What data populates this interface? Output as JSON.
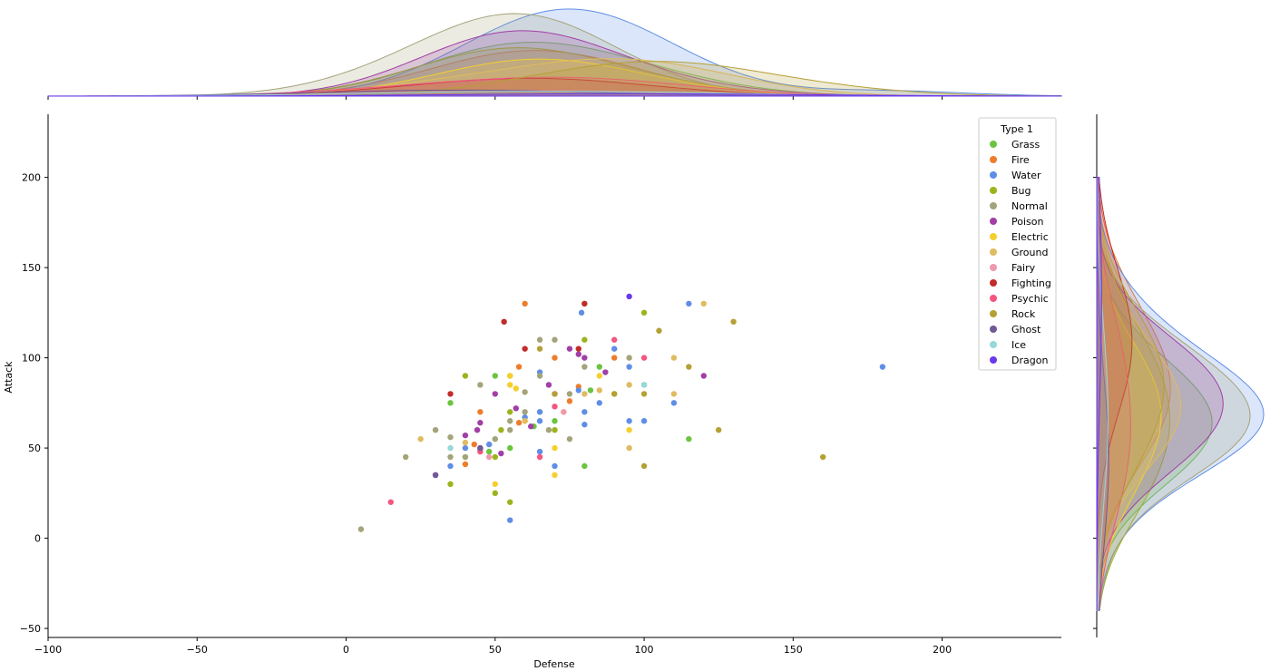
{
  "chart_data": {
    "type": "scatter",
    "subtype": "jointplot",
    "xlabel": "Defense",
    "ylabel": "Attack",
    "xlim": [
      -100,
      240
    ],
    "ylim": [
      -55,
      235
    ],
    "xticks": [
      -100,
      -50,
      0,
      50,
      100,
      150,
      200
    ],
    "xtick_labels": [
      "−100",
      "−50",
      "0",
      "50",
      "100",
      "150",
      "200"
    ],
    "yticks": [
      -50,
      0,
      50,
      100,
      150,
      200
    ],
    "ytick_labels": [
      "−50",
      "0",
      "50",
      "100",
      "150",
      "200"
    ],
    "legend": {
      "title": "Type 1",
      "placement": "top-right",
      "entries": [
        "Grass",
        "Fire",
        "Water",
        "Bug",
        "Normal",
        "Poison",
        "Electric",
        "Ground",
        "Fairy",
        "Fighting",
        "Psychic",
        "Rock",
        "Ghost",
        "Ice",
        "Dragon"
      ]
    },
    "marginal": "kde",
    "series": [
      {
        "name": "Grass",
        "color": "#6bc43f",
        "points": [
          [
            35,
            75
          ],
          [
            40,
            45
          ],
          [
            45,
            49
          ],
          [
            48,
            48
          ],
          [
            50,
            90
          ],
          [
            55,
            50
          ],
          [
            63,
            62
          ],
          [
            65,
            70
          ],
          [
            70,
            65
          ],
          [
            80,
            40
          ],
          [
            82,
            82
          ],
          [
            85,
            95
          ],
          [
            100,
            85
          ],
          [
            115,
            55
          ]
        ]
      },
      {
        "name": "Fire",
        "color": "#ee7d2b",
        "points": [
          [
            40,
            41
          ],
          [
            43,
            52
          ],
          [
            45,
            70
          ],
          [
            58,
            64
          ],
          [
            58,
            95
          ],
          [
            60,
            130
          ],
          [
            70,
            100
          ],
          [
            75,
            76
          ],
          [
            78,
            84
          ],
          [
            80,
            130
          ],
          [
            90,
            100
          ]
        ]
      },
      {
        "name": "Water",
        "color": "#5f8ee6",
        "points": [
          [
            35,
            40
          ],
          [
            40,
            50
          ],
          [
            48,
            52
          ],
          [
            55,
            10
          ],
          [
            60,
            67
          ],
          [
            65,
            48
          ],
          [
            65,
            92
          ],
          [
            65,
            65
          ],
          [
            65,
            70
          ],
          [
            70,
            40
          ],
          [
            78,
            82
          ],
          [
            79,
            125
          ],
          [
            80,
            63
          ],
          [
            80,
            70
          ],
          [
            85,
            75
          ],
          [
            90,
            105
          ],
          [
            95,
            65
          ],
          [
            95,
            95
          ],
          [
            100,
            65
          ],
          [
            110,
            75
          ],
          [
            115,
            130
          ],
          [
            180,
            95
          ]
        ]
      },
      {
        "name": "Bug",
        "color": "#9db31c",
        "points": [
          [
            35,
            30
          ],
          [
            40,
            90
          ],
          [
            50,
            25
          ],
          [
            50,
            45
          ],
          [
            52,
            60
          ],
          [
            55,
            20
          ],
          [
            55,
            70
          ],
          [
            55,
            90
          ],
          [
            70,
            60
          ],
          [
            80,
            110
          ],
          [
            90,
            80
          ],
          [
            100,
            125
          ]
        ]
      },
      {
        "name": "Normal",
        "color": "#a4a37a",
        "points": [
          [
            5,
            5
          ],
          [
            20,
            45
          ],
          [
            30,
            60
          ],
          [
            35,
            45
          ],
          [
            35,
            56
          ],
          [
            40,
            45
          ],
          [
            45,
            85
          ],
          [
            50,
            55
          ],
          [
            55,
            60
          ],
          [
            55,
            65
          ],
          [
            60,
            70
          ],
          [
            60,
            81
          ],
          [
            65,
            90
          ],
          [
            65,
            110
          ],
          [
            68,
            60
          ],
          [
            70,
            110
          ],
          [
            75,
            55
          ],
          [
            75,
            80
          ],
          [
            80,
            95
          ],
          [
            95,
            100
          ]
        ]
      },
      {
        "name": "Poison",
        "color": "#a13fa6",
        "points": [
          [
            30,
            35
          ],
          [
            40,
            57
          ],
          [
            44,
            60
          ],
          [
            45,
            50
          ],
          [
            45,
            64
          ],
          [
            50,
            80
          ],
          [
            52,
            47
          ],
          [
            57,
            72
          ],
          [
            62,
            62
          ],
          [
            68,
            85
          ],
          [
            70,
            80
          ],
          [
            75,
            105
          ],
          [
            78,
            102
          ],
          [
            80,
            100
          ],
          [
            87,
            92
          ],
          [
            120,
            90
          ]
        ]
      },
      {
        "name": "Electric",
        "color": "#f5cf2e",
        "points": [
          [
            50,
            30
          ],
          [
            55,
            85
          ],
          [
            55,
            90
          ],
          [
            57,
            83
          ],
          [
            60,
            65
          ],
          [
            70,
            35
          ],
          [
            70,
            50
          ],
          [
            85,
            90
          ],
          [
            95,
            60
          ]
        ]
      },
      {
        "name": "Ground",
        "color": "#dfbb61",
        "points": [
          [
            25,
            55
          ],
          [
            40,
            53
          ],
          [
            60,
            65
          ],
          [
            73,
            70
          ],
          [
            80,
            80
          ],
          [
            85,
            82
          ],
          [
            95,
            50
          ],
          [
            95,
            85
          ],
          [
            110,
            80
          ],
          [
            110,
            100
          ],
          [
            120,
            130
          ]
        ]
      },
      {
        "name": "Fairy",
        "color": "#ee99ac",
        "points": [
          [
            48,
            45
          ],
          [
            73,
            70
          ]
        ]
      },
      {
        "name": "Fighting",
        "color": "#c12c2b",
        "points": [
          [
            35,
            80
          ],
          [
            53,
            120
          ],
          [
            60,
            105
          ],
          [
            80,
            130
          ],
          [
            78,
            105
          ]
        ]
      },
      {
        "name": "Psychic",
        "color": "#f3567f",
        "points": [
          [
            15,
            20
          ],
          [
            45,
            48
          ],
          [
            65,
            45
          ],
          [
            70,
            73
          ],
          [
            90,
            110
          ],
          [
            100,
            100
          ]
        ]
      },
      {
        "name": "Rock",
        "color": "#b5a035",
        "points": [
          [
            65,
            105
          ],
          [
            70,
            80
          ],
          [
            90,
            80
          ],
          [
            100,
            40
          ],
          [
            100,
            80
          ],
          [
            105,
            115
          ],
          [
            115,
            95
          ],
          [
            125,
            60
          ],
          [
            130,
            120
          ],
          [
            160,
            45
          ]
        ]
      },
      {
        "name": "Ghost",
        "color": "#705996",
        "points": [
          [
            30,
            35
          ],
          [
            45,
            50
          ]
        ]
      },
      {
        "name": "Ice",
        "color": "#97d8d8",
        "points": [
          [
            35,
            50
          ],
          [
            100,
            85
          ]
        ]
      },
      {
        "name": "Dragon",
        "color": "#6b38f0",
        "points": [
          [
            95,
            134
          ]
        ]
      }
    ],
    "kde_curves": {
      "x_density_peaks": [
        {
          "name": "Water",
          "mean": 70,
          "sd": 24,
          "amp": 1.0
        },
        {
          "name": "Normal",
          "mean": 55,
          "sd": 24,
          "amp": 0.85
        },
        {
          "name": "Rock",
          "mean": 100,
          "sd": 35,
          "amp": 0.28
        },
        {
          "name": "Fire",
          "mean": 60,
          "sd": 20,
          "amp": 0.55
        },
        {
          "name": "Poison",
          "mean": 60,
          "sd": 18,
          "amp": 0.5
        },
        {
          "name": "Grass",
          "mean": 65,
          "sd": 22,
          "amp": 0.45
        }
      ]
    }
  }
}
